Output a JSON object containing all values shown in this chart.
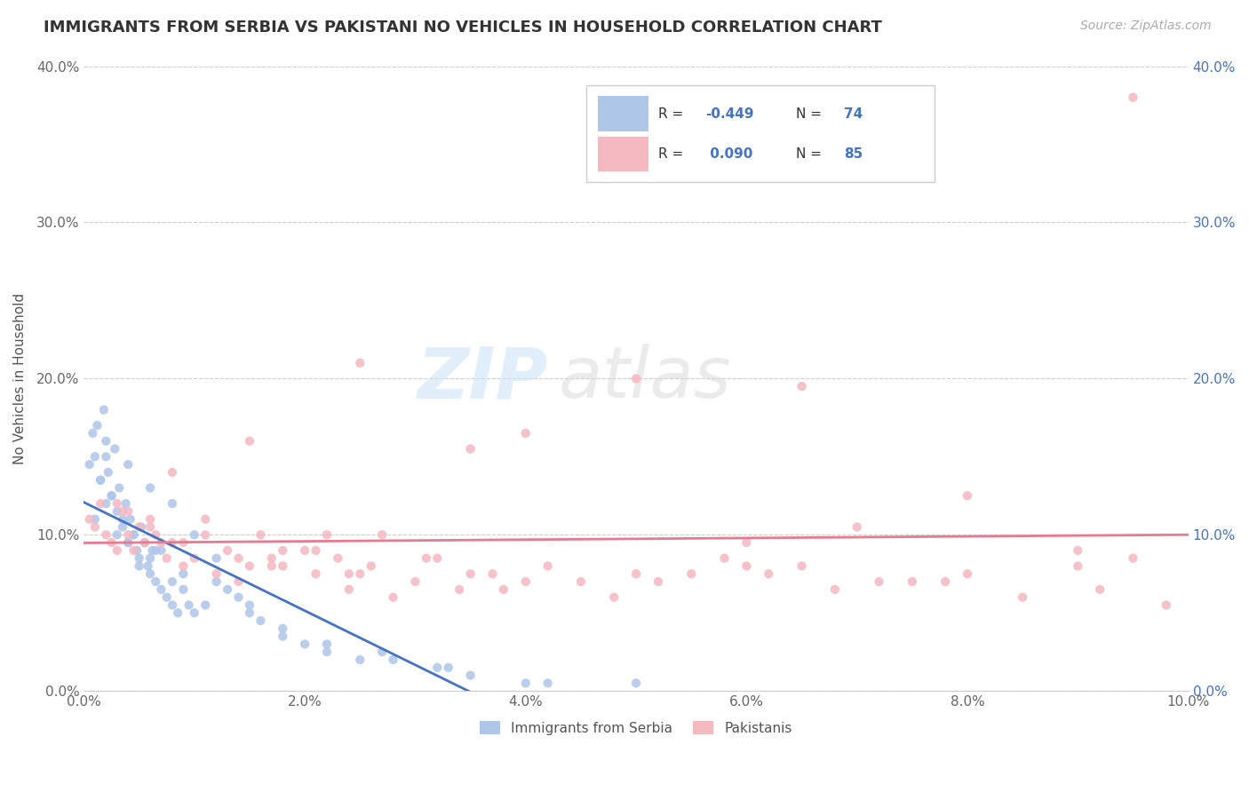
{
  "title": "IMMIGRANTS FROM SERBIA VS PAKISTANI NO VEHICLES IN HOUSEHOLD CORRELATION CHART",
  "source_text": "Source: ZipAtlas.com",
  "ylabel": "No Vehicles in Household",
  "x_tick_labels": [
    "0.0%",
    "2.0%",
    "4.0%",
    "6.0%",
    "8.0%",
    "10.0%"
  ],
  "x_tick_vals": [
    0.0,
    2.0,
    4.0,
    6.0,
    8.0,
    10.0
  ],
  "y_tick_labels": [
    "0.0%",
    "10.0%",
    "20.0%",
    "30.0%",
    "40.0%"
  ],
  "y_tick_vals": [
    0.0,
    10.0,
    20.0,
    30.0,
    40.0
  ],
  "xlim": [
    0.0,
    10.0
  ],
  "ylim": [
    0.0,
    40.0
  ],
  "serbia_color": "#aec6e8",
  "pakistan_color": "#f4b8c1",
  "serbia_line_color": "#4472c4",
  "pakistan_line_color": "#e87a8f",
  "serbia_R": -0.449,
  "serbia_N": 74,
  "pakistan_R": 0.09,
  "pakistan_N": 85,
  "bottom_legend_serbia": "Immigrants from Serbia",
  "bottom_legend_pakistan": "Pakistanis",
  "watermark_zip": "ZIP",
  "watermark_atlas": "atlas",
  "serbia_x": [
    0.05,
    0.08,
    0.1,
    0.12,
    0.15,
    0.18,
    0.2,
    0.22,
    0.25,
    0.28,
    0.3,
    0.32,
    0.35,
    0.38,
    0.4,
    0.42,
    0.45,
    0.48,
    0.5,
    0.52,
    0.55,
    0.58,
    0.6,
    0.62,
    0.65,
    0.7,
    0.75,
    0.8,
    0.85,
    0.9,
    0.95,
    1.0,
    1.1,
    1.2,
    1.3,
    1.4,
    1.5,
    1.6,
    1.8,
    2.0,
    2.2,
    2.5,
    2.8,
    3.2,
    3.5,
    4.0,
    0.1,
    0.2,
    0.3,
    0.4,
    0.5,
    0.6,
    0.7,
    0.8,
    0.9,
    1.0,
    1.2,
    1.5,
    1.8,
    2.2,
    2.7,
    3.3,
    4.2,
    5.0,
    0.2,
    0.4,
    0.6,
    0.8,
    0.15,
    0.25,
    0.35,
    0.45,
    0.55,
    0.65
  ],
  "serbia_y": [
    14.5,
    16.5,
    15.0,
    17.0,
    13.5,
    18.0,
    16.0,
    14.0,
    12.5,
    15.5,
    11.5,
    13.0,
    10.5,
    12.0,
    9.5,
    11.0,
    10.0,
    9.0,
    8.5,
    10.5,
    9.5,
    8.0,
    7.5,
    9.0,
    7.0,
    6.5,
    6.0,
    5.5,
    5.0,
    6.5,
    5.5,
    5.0,
    5.5,
    7.0,
    6.5,
    6.0,
    5.0,
    4.5,
    3.5,
    3.0,
    2.5,
    2.0,
    2.0,
    1.5,
    1.0,
    0.5,
    11.0,
    12.0,
    10.0,
    9.5,
    8.0,
    8.5,
    9.0,
    7.0,
    7.5,
    10.0,
    8.5,
    5.5,
    4.0,
    3.0,
    2.5,
    1.5,
    0.5,
    0.5,
    15.0,
    14.5,
    13.0,
    12.0,
    13.5,
    12.5,
    11.0,
    10.0,
    9.5,
    9.0
  ],
  "pakistan_x": [
    0.05,
    0.1,
    0.15,
    0.2,
    0.25,
    0.3,
    0.35,
    0.4,
    0.45,
    0.5,
    0.55,
    0.6,
    0.65,
    0.7,
    0.75,
    0.8,
    0.9,
    1.0,
    1.1,
    1.2,
    1.3,
    1.4,
    1.5,
    1.6,
    1.7,
    1.8,
    2.0,
    2.1,
    2.2,
    2.3,
    2.4,
    2.5,
    2.6,
    2.8,
    3.0,
    3.2,
    3.5,
    3.8,
    4.0,
    4.5,
    5.0,
    5.5,
    6.0,
    6.5,
    7.0,
    7.5,
    8.0,
    9.0,
    9.5,
    0.3,
    0.6,
    0.9,
    1.1,
    1.4,
    1.7,
    2.1,
    2.4,
    2.7,
    3.1,
    3.4,
    3.7,
    4.2,
    4.8,
    5.2,
    5.8,
    6.2,
    6.8,
    7.2,
    7.8,
    8.5,
    9.2,
    1.5,
    2.5,
    4.0,
    6.0,
    8.0,
    9.0,
    9.8,
    0.8,
    3.5,
    5.0,
    6.5,
    0.4,
    1.8,
    9.5
  ],
  "pakistan_y": [
    11.0,
    10.5,
    12.0,
    10.0,
    9.5,
    9.0,
    11.5,
    10.0,
    9.0,
    10.5,
    9.5,
    11.0,
    10.0,
    9.5,
    8.5,
    9.5,
    8.0,
    8.5,
    10.0,
    7.5,
    9.0,
    7.0,
    8.0,
    10.0,
    8.5,
    8.0,
    9.0,
    7.5,
    10.0,
    8.5,
    6.5,
    7.5,
    8.0,
    6.0,
    7.0,
    8.5,
    7.5,
    6.5,
    7.0,
    7.0,
    20.0,
    7.5,
    9.5,
    8.0,
    10.5,
    7.0,
    12.5,
    9.0,
    8.5,
    12.0,
    10.5,
    9.5,
    11.0,
    8.5,
    8.0,
    9.0,
    7.5,
    10.0,
    8.5,
    6.5,
    7.5,
    8.0,
    6.0,
    7.0,
    8.5,
    7.5,
    6.5,
    7.0,
    7.0,
    6.0,
    6.5,
    16.0,
    21.0,
    16.5,
    8.0,
    7.5,
    8.0,
    5.5,
    14.0,
    15.5,
    7.5,
    19.5,
    11.5,
    9.0,
    38.0
  ]
}
